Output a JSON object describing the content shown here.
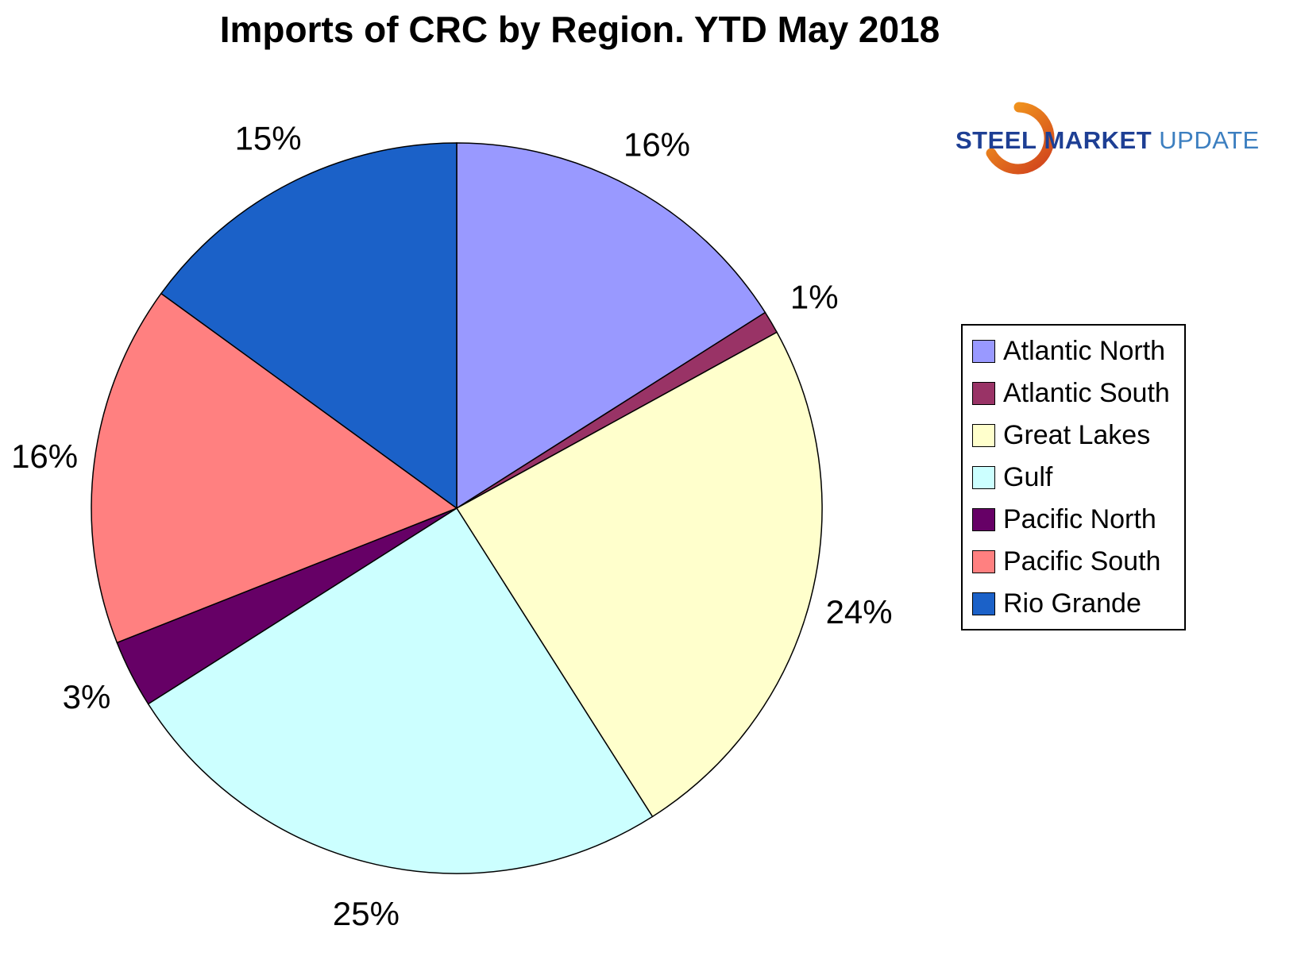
{
  "logo": {
    "steel": "STEEL",
    "market": "MARKET",
    "update": "UPDATE"
  },
  "chart_data": {
    "type": "pie",
    "title": "Imports of CRC by Region. YTD May 2018",
    "categories": [
      "Atlantic North",
      "Atlantic South",
      "Great Lakes",
      "Gulf",
      "Pacific North",
      "Pacific South",
      "Rio Grande"
    ],
    "values": [
      16,
      1,
      24,
      25,
      3,
      16,
      15
    ],
    "labels": [
      "16%",
      "1%",
      "24%",
      "25%",
      "3%",
      "16%",
      "15%"
    ],
    "unit": "percent",
    "colors": [
      "#9999FF",
      "#993366",
      "#FFFFCC",
      "#CCFFFF",
      "#660066",
      "#FF8080",
      "#1B61C8"
    ],
    "start_angle_deg": 0,
    "direction": "clockwise",
    "legend_position": "right",
    "slice_border_color": "#000000"
  }
}
